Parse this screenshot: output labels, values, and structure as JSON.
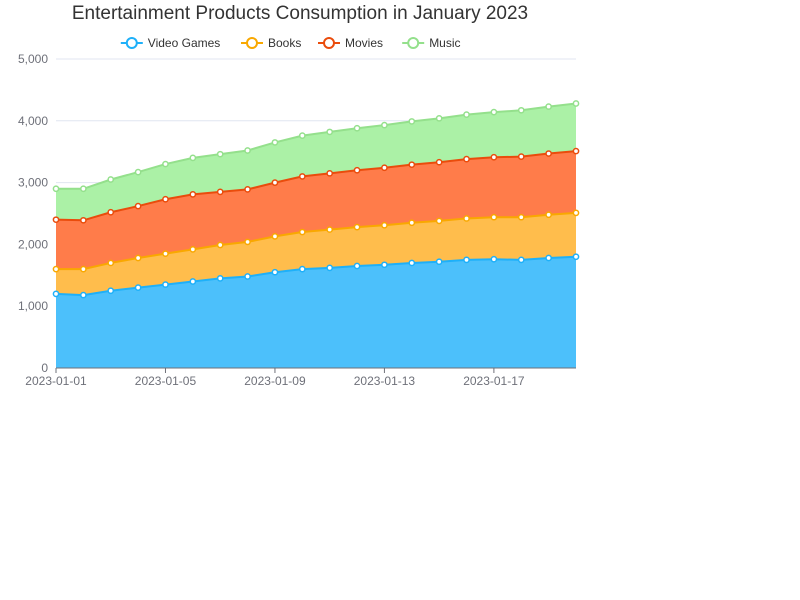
{
  "chart_data": {
    "type": "area",
    "stacked": true,
    "title": "Entertainment Products Consumption in January 2023",
    "xlabel": "",
    "ylabel": "",
    "ylim": [
      0,
      5000
    ],
    "yticks": [
      "0",
      "1,000",
      "2,000",
      "3,000",
      "4,000",
      "5,000"
    ],
    "xtick_labels": [
      "2023-01-01",
      "2023-01-05",
      "2023-01-09",
      "2023-01-13",
      "2023-01-17"
    ],
    "grid": true,
    "legend_position": "top",
    "x": [
      "2023-01-01",
      "2023-01-02",
      "2023-01-03",
      "2023-01-04",
      "2023-01-05",
      "2023-01-06",
      "2023-01-07",
      "2023-01-08",
      "2023-01-09",
      "2023-01-10",
      "2023-01-11",
      "2023-01-12",
      "2023-01-13",
      "2023-01-14",
      "2023-01-15",
      "2023-01-16",
      "2023-01-17",
      "2023-01-18",
      "2023-01-19",
      "2023-01-20"
    ],
    "series": [
      {
        "name": "Video Games",
        "color": "#1eb0f9",
        "fill": "#4cc0fb",
        "values": [
          1200,
          1180,
          1250,
          1300,
          1350,
          1400,
          1450,
          1480,
          1550,
          1600,
          1620,
          1650,
          1670,
          1700,
          1720,
          1750,
          1760,
          1750,
          1780,
          1800
        ]
      },
      {
        "name": "Books",
        "color": "#f9a800",
        "fill": "#ffbd4c",
        "values": [
          400,
          420,
          450,
          480,
          500,
          520,
          540,
          560,
          580,
          600,
          620,
          630,
          640,
          650,
          660,
          670,
          680,
          690,
          700,
          710
        ]
      },
      {
        "name": "Movies",
        "color": "#ea4c0c",
        "fill": "#ff7c4a",
        "values": [
          800,
          790,
          820,
          840,
          880,
          890,
          860,
          850,
          870,
          900,
          910,
          920,
          930,
          940,
          950,
          960,
          970,
          980,
          990,
          1000
        ]
      },
      {
        "name": "Music",
        "color": "#94e08c",
        "fill": "#abf1a6",
        "values": [
          500,
          510,
          530,
          550,
          570,
          590,
          610,
          630,
          650,
          660,
          670,
          680,
          690,
          700,
          710,
          720,
          730,
          750,
          760,
          770
        ]
      }
    ]
  }
}
